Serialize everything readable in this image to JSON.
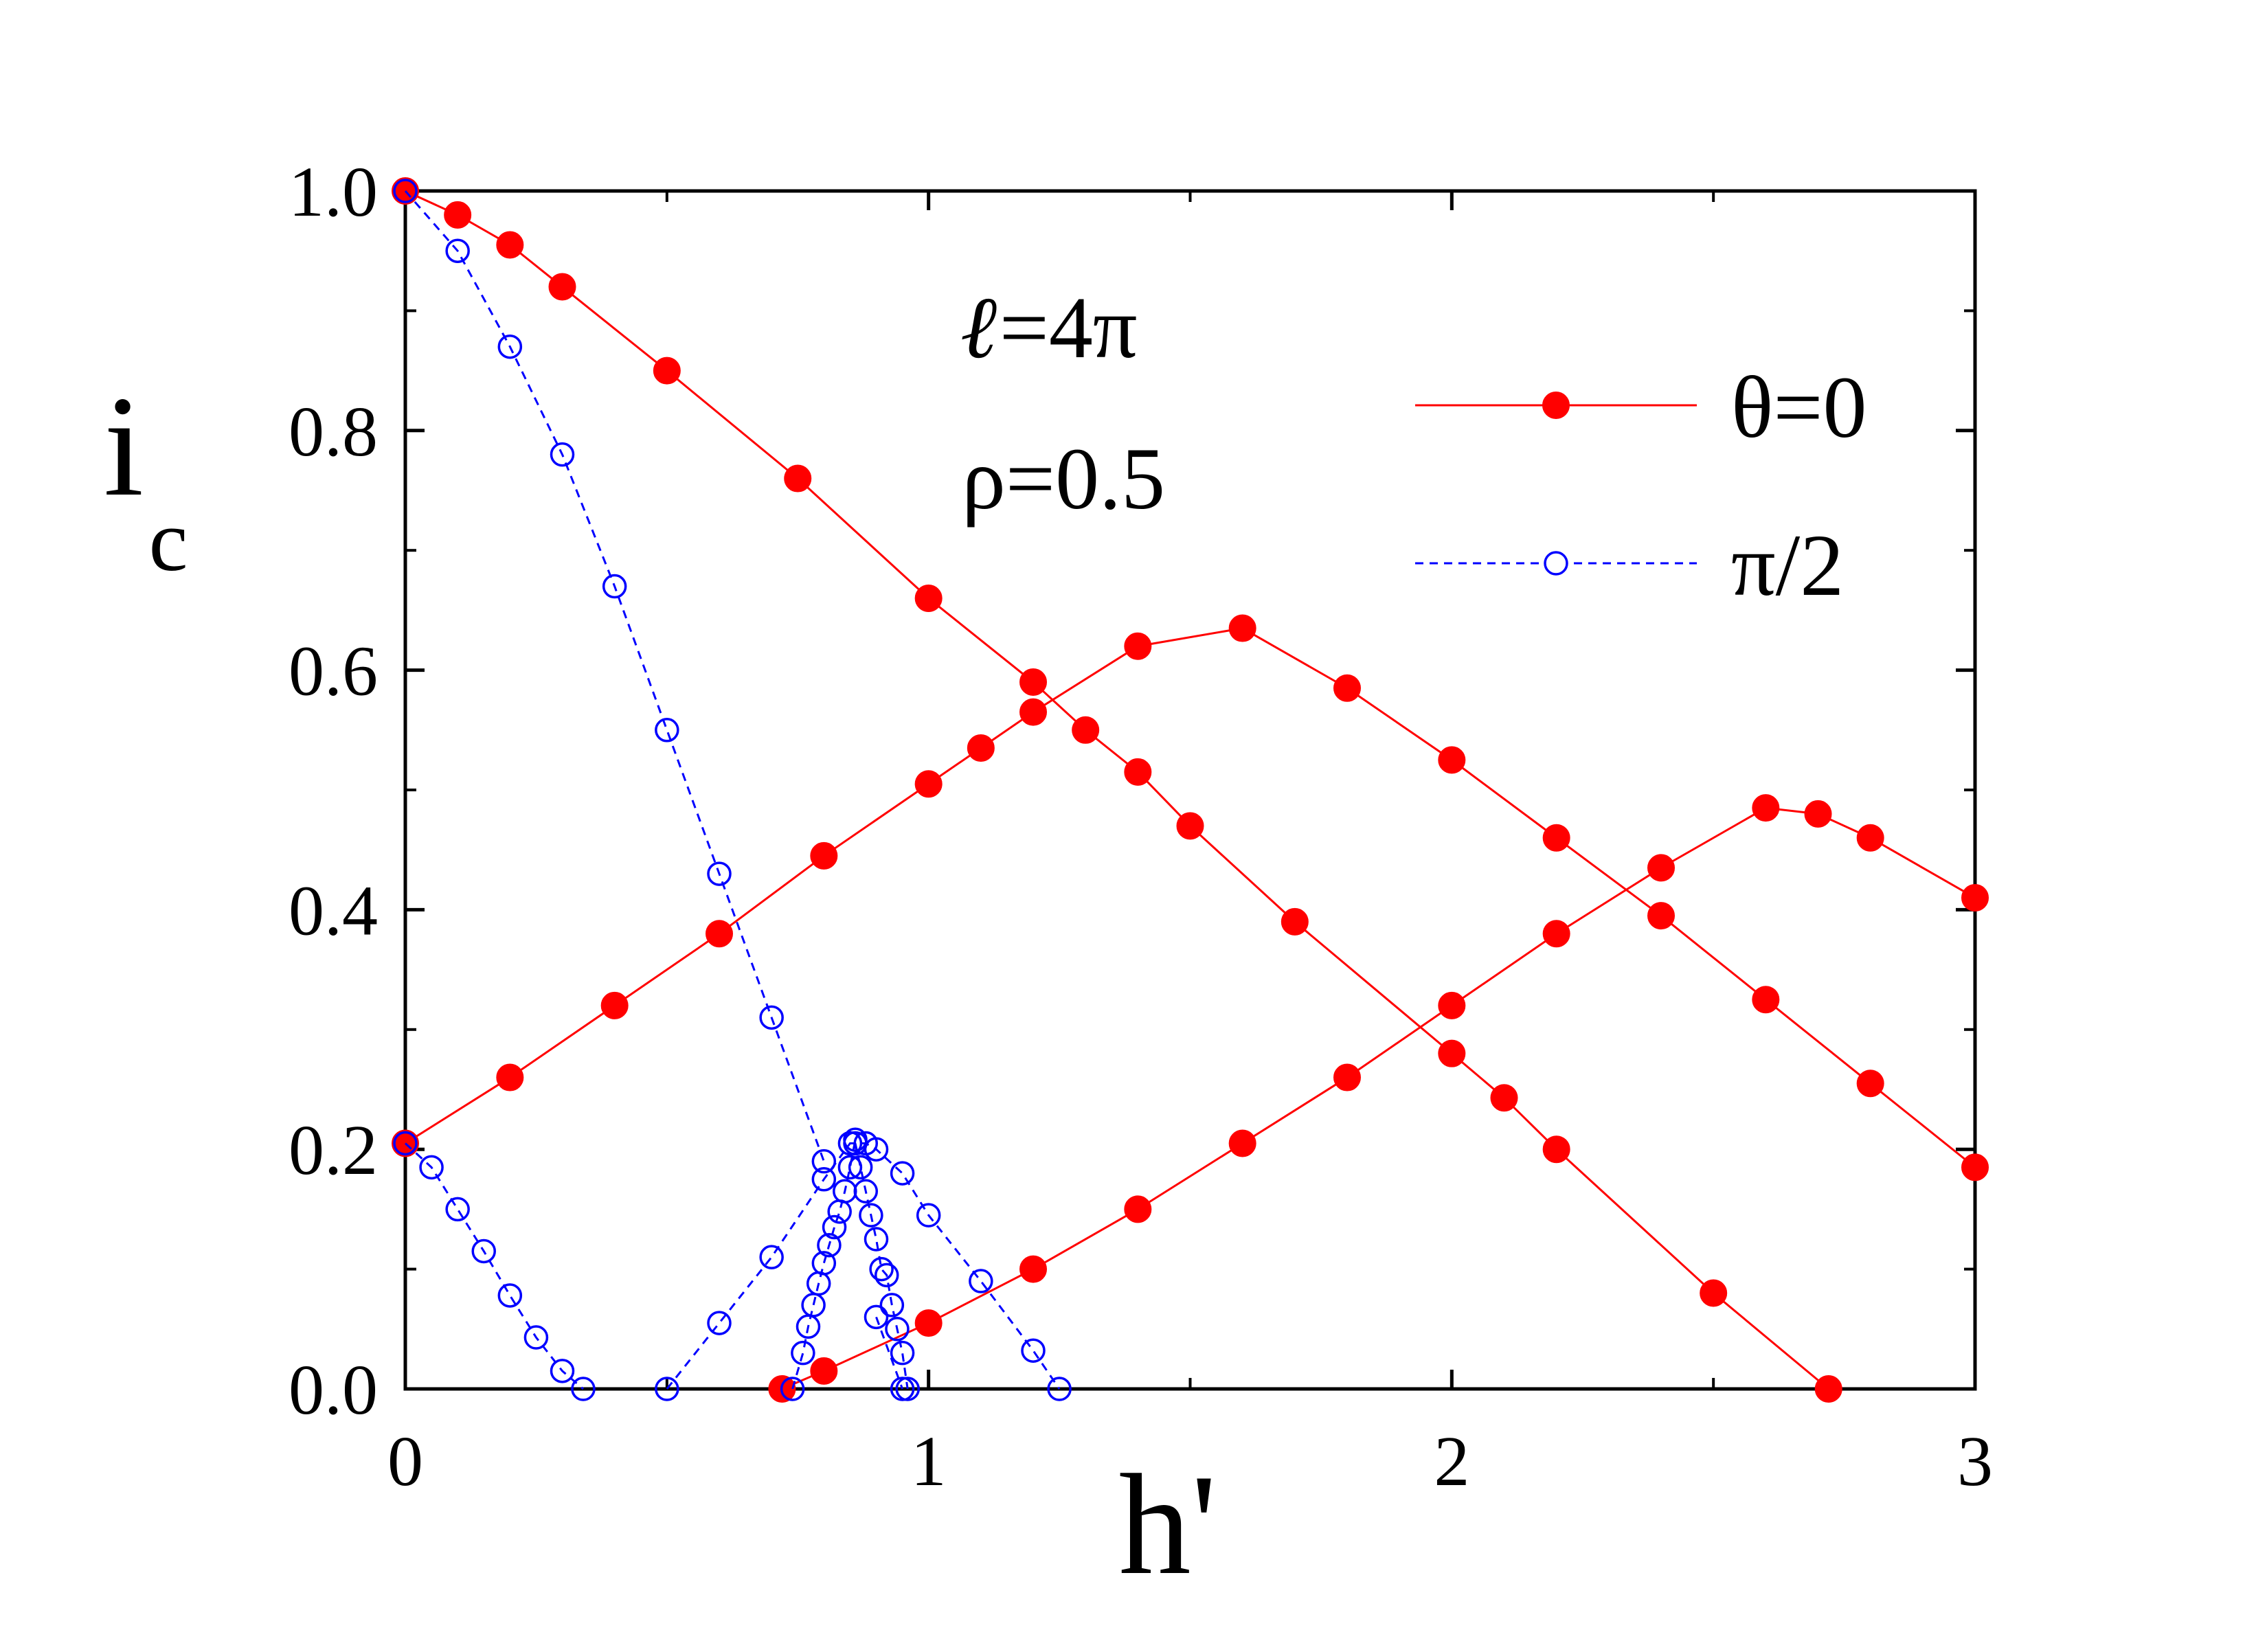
{
  "chart_data": {
    "type": "scatter",
    "title": "",
    "xlabel": "h'",
    "ylabel_main": "i",
    "ylabel_sub": "c",
    "xlim": [
      0,
      3
    ],
    "ylim": [
      0,
      1
    ],
    "xticks": [
      "0",
      "1",
      "2",
      "3"
    ],
    "yticks": [
      "0.0",
      "0.2",
      "0.4",
      "0.6",
      "0.8",
      "1.0"
    ],
    "grid": false,
    "legend_position": "top-right",
    "annotations": {
      "line1_symbol": "ℓ",
      "line1_rest": "=4π",
      "line2": "ρ=0.5"
    },
    "series": [
      {
        "name": "θ=0",
        "color": "#ff0000",
        "marker": "filled-circle",
        "line": "solid",
        "branches": [
          {
            "x": [
              0,
              0.1,
              0.2,
              0.3,
              0.5,
              0.75,
              1.0,
              1.2,
              1.3,
              1.4,
              1.5,
              1.7,
              2.0,
              2.1,
              2.2,
              2.5,
              2.72
            ],
            "y": [
              1.0,
              0.98,
              0.955,
              0.92,
              0.85,
              0.76,
              0.66,
              0.59,
              0.55,
              0.515,
              0.47,
              0.39,
              0.28,
              0.243,
              0.2,
              0.08,
              0.0
            ]
          },
          {
            "x": [
              0.0,
              0.2,
              0.4,
              0.6,
              0.8,
              1.0,
              1.1,
              1.2,
              1.4,
              1.6,
              1.8,
              2.0,
              2.2,
              2.4,
              2.6,
              2.8,
              3.0
            ],
            "y": [
              0.205,
              0.26,
              0.32,
              0.38,
              0.445,
              0.505,
              0.535,
              0.565,
              0.62,
              0.635,
              0.585,
              0.525,
              0.46,
              0.395,
              0.325,
              0.255,
              0.185
            ]
          },
          {
            "x": [
              0.72,
              0.8,
              1.0,
              1.2,
              1.4,
              1.6,
              1.8,
              2.0,
              2.2,
              2.4,
              2.6,
              2.7,
              2.8,
              3.0
            ],
            "y": [
              0.0,
              0.015,
              0.055,
              0.1,
              0.15,
              0.205,
              0.26,
              0.32,
              0.38,
              0.435,
              0.485,
              0.48,
              0.46,
              0.41
            ]
          }
        ]
      },
      {
        "name": "π/2",
        "color": "#0000ff",
        "marker": "open-circle",
        "line": "dashed",
        "branches": [
          {
            "x": [
              0,
              0.1,
              0.2,
              0.3,
              0.4,
              0.5,
              0.6,
              0.7,
              0.8
            ],
            "y": [
              1.0,
              0.95,
              0.87,
              0.78,
              0.67,
              0.55,
              0.43,
              0.31,
              0.19
            ]
          },
          {
            "x": [
              0,
              0.05,
              0.1,
              0.15,
              0.2,
              0.25,
              0.3,
              0.34
            ],
            "y": [
              0.205,
              0.185,
              0.15,
              0.115,
              0.078,
              0.043,
              0.015,
              0.0
            ]
          },
          {
            "x": [
              0.5,
              0.6,
              0.7,
              0.8,
              0.85,
              0.88,
              0.9,
              0.95,
              1.0,
              1.1,
              1.2,
              1.25
            ],
            "y": [
              0.0,
              0.055,
              0.11,
              0.175,
              0.205,
              0.205,
              0.2,
              0.18,
              0.145,
              0.09,
              0.032,
              0.0
            ]
          },
          {
            "x": [
              0.74,
              0.76,
              0.77,
              0.78,
              0.79,
              0.8,
              0.81,
              0.82,
              0.83,
              0.84,
              0.85,
              0.86
            ],
            "y": [
              0.0,
              0.03,
              0.052,
              0.07,
              0.088,
              0.105,
              0.12,
              0.135,
              0.148,
              0.165,
              0.185,
              0.208
            ]
          },
          {
            "x": [
              0.86,
              0.87,
              0.88,
              0.89,
              0.9,
              0.91,
              0.92,
              0.93,
              0.94,
              0.95,
              0.96
            ],
            "y": [
              0.205,
              0.185,
              0.165,
              0.145,
              0.125,
              0.1,
              0.095,
              0.07,
              0.05,
              0.03,
              0.0
            ]
          },
          {
            "x": [
              0.9,
              0.95
            ],
            "y": [
              0.06,
              0.0
            ]
          }
        ]
      }
    ]
  }
}
